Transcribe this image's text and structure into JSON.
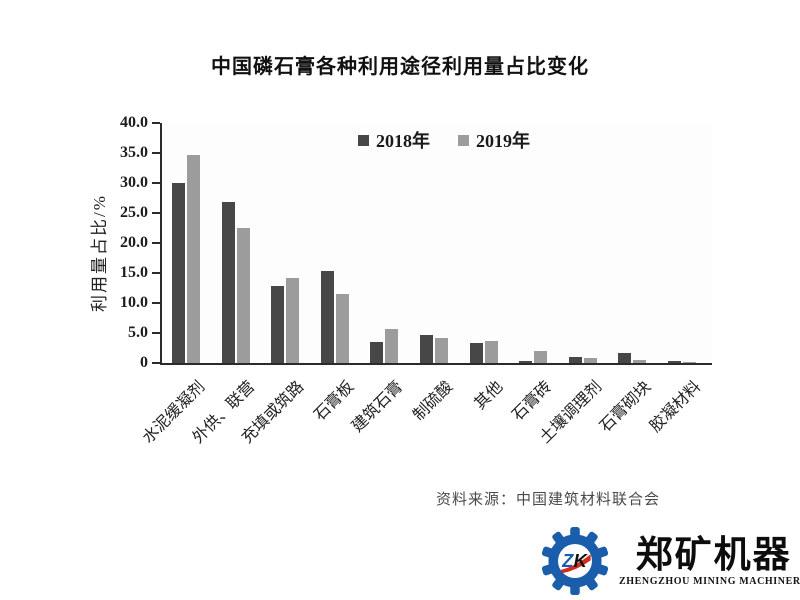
{
  "colors": {
    "series_2018": "#474747",
    "series_2019": "#9c9c9c",
    "axis": "#2b2b2b",
    "logo_blue": "#1a5dab",
    "logo_red": "#d42b1e",
    "logo_black": "#141414"
  },
  "chart_data": {
    "type": "bar",
    "title": "中国磷石膏各种利用途径利用量占比变化",
    "xlabel": "",
    "ylabel": "利用量占比/%",
    "ylim": [
      0,
      40
    ],
    "yticks": [
      40,
      35,
      30,
      25,
      20,
      15,
      10,
      5,
      0
    ],
    "ytick_labels": [
      "40.0",
      "35.0",
      "30.0",
      "25.0",
      "20.0",
      "15.0",
      "10.0",
      "5.0",
      "0"
    ],
    "grid": false,
    "legend_position": "top-inside",
    "categories": [
      "水泥缓凝剂",
      "外供、联营",
      "充填或筑路",
      "石膏板",
      "建筑石膏",
      "制硫酸",
      "其他",
      "石膏砖",
      "土壤调理剂",
      "石膏砌块",
      "胶凝材料"
    ],
    "series": [
      {
        "name": "2018年",
        "color": "#474747",
        "values": [
          30.0,
          26.9,
          12.9,
          15.4,
          3.5,
          4.6,
          3.3,
          0.4,
          1.0,
          1.6,
          0.4
        ]
      },
      {
        "name": "2019年",
        "color": "#9c9c9c",
        "values": [
          34.7,
          22.5,
          14.2,
          11.5,
          5.7,
          4.1,
          3.7,
          2.0,
          0.9,
          0.5,
          0.2
        ]
      }
    ]
  },
  "source": {
    "text": "资料来源：中国建筑材料联合会"
  },
  "logo": {
    "zk_z": "Z",
    "zk_k": "K",
    "name": "郑矿机器",
    "subtitle": "ZHENGZHOU MINING MACHINERY"
  }
}
